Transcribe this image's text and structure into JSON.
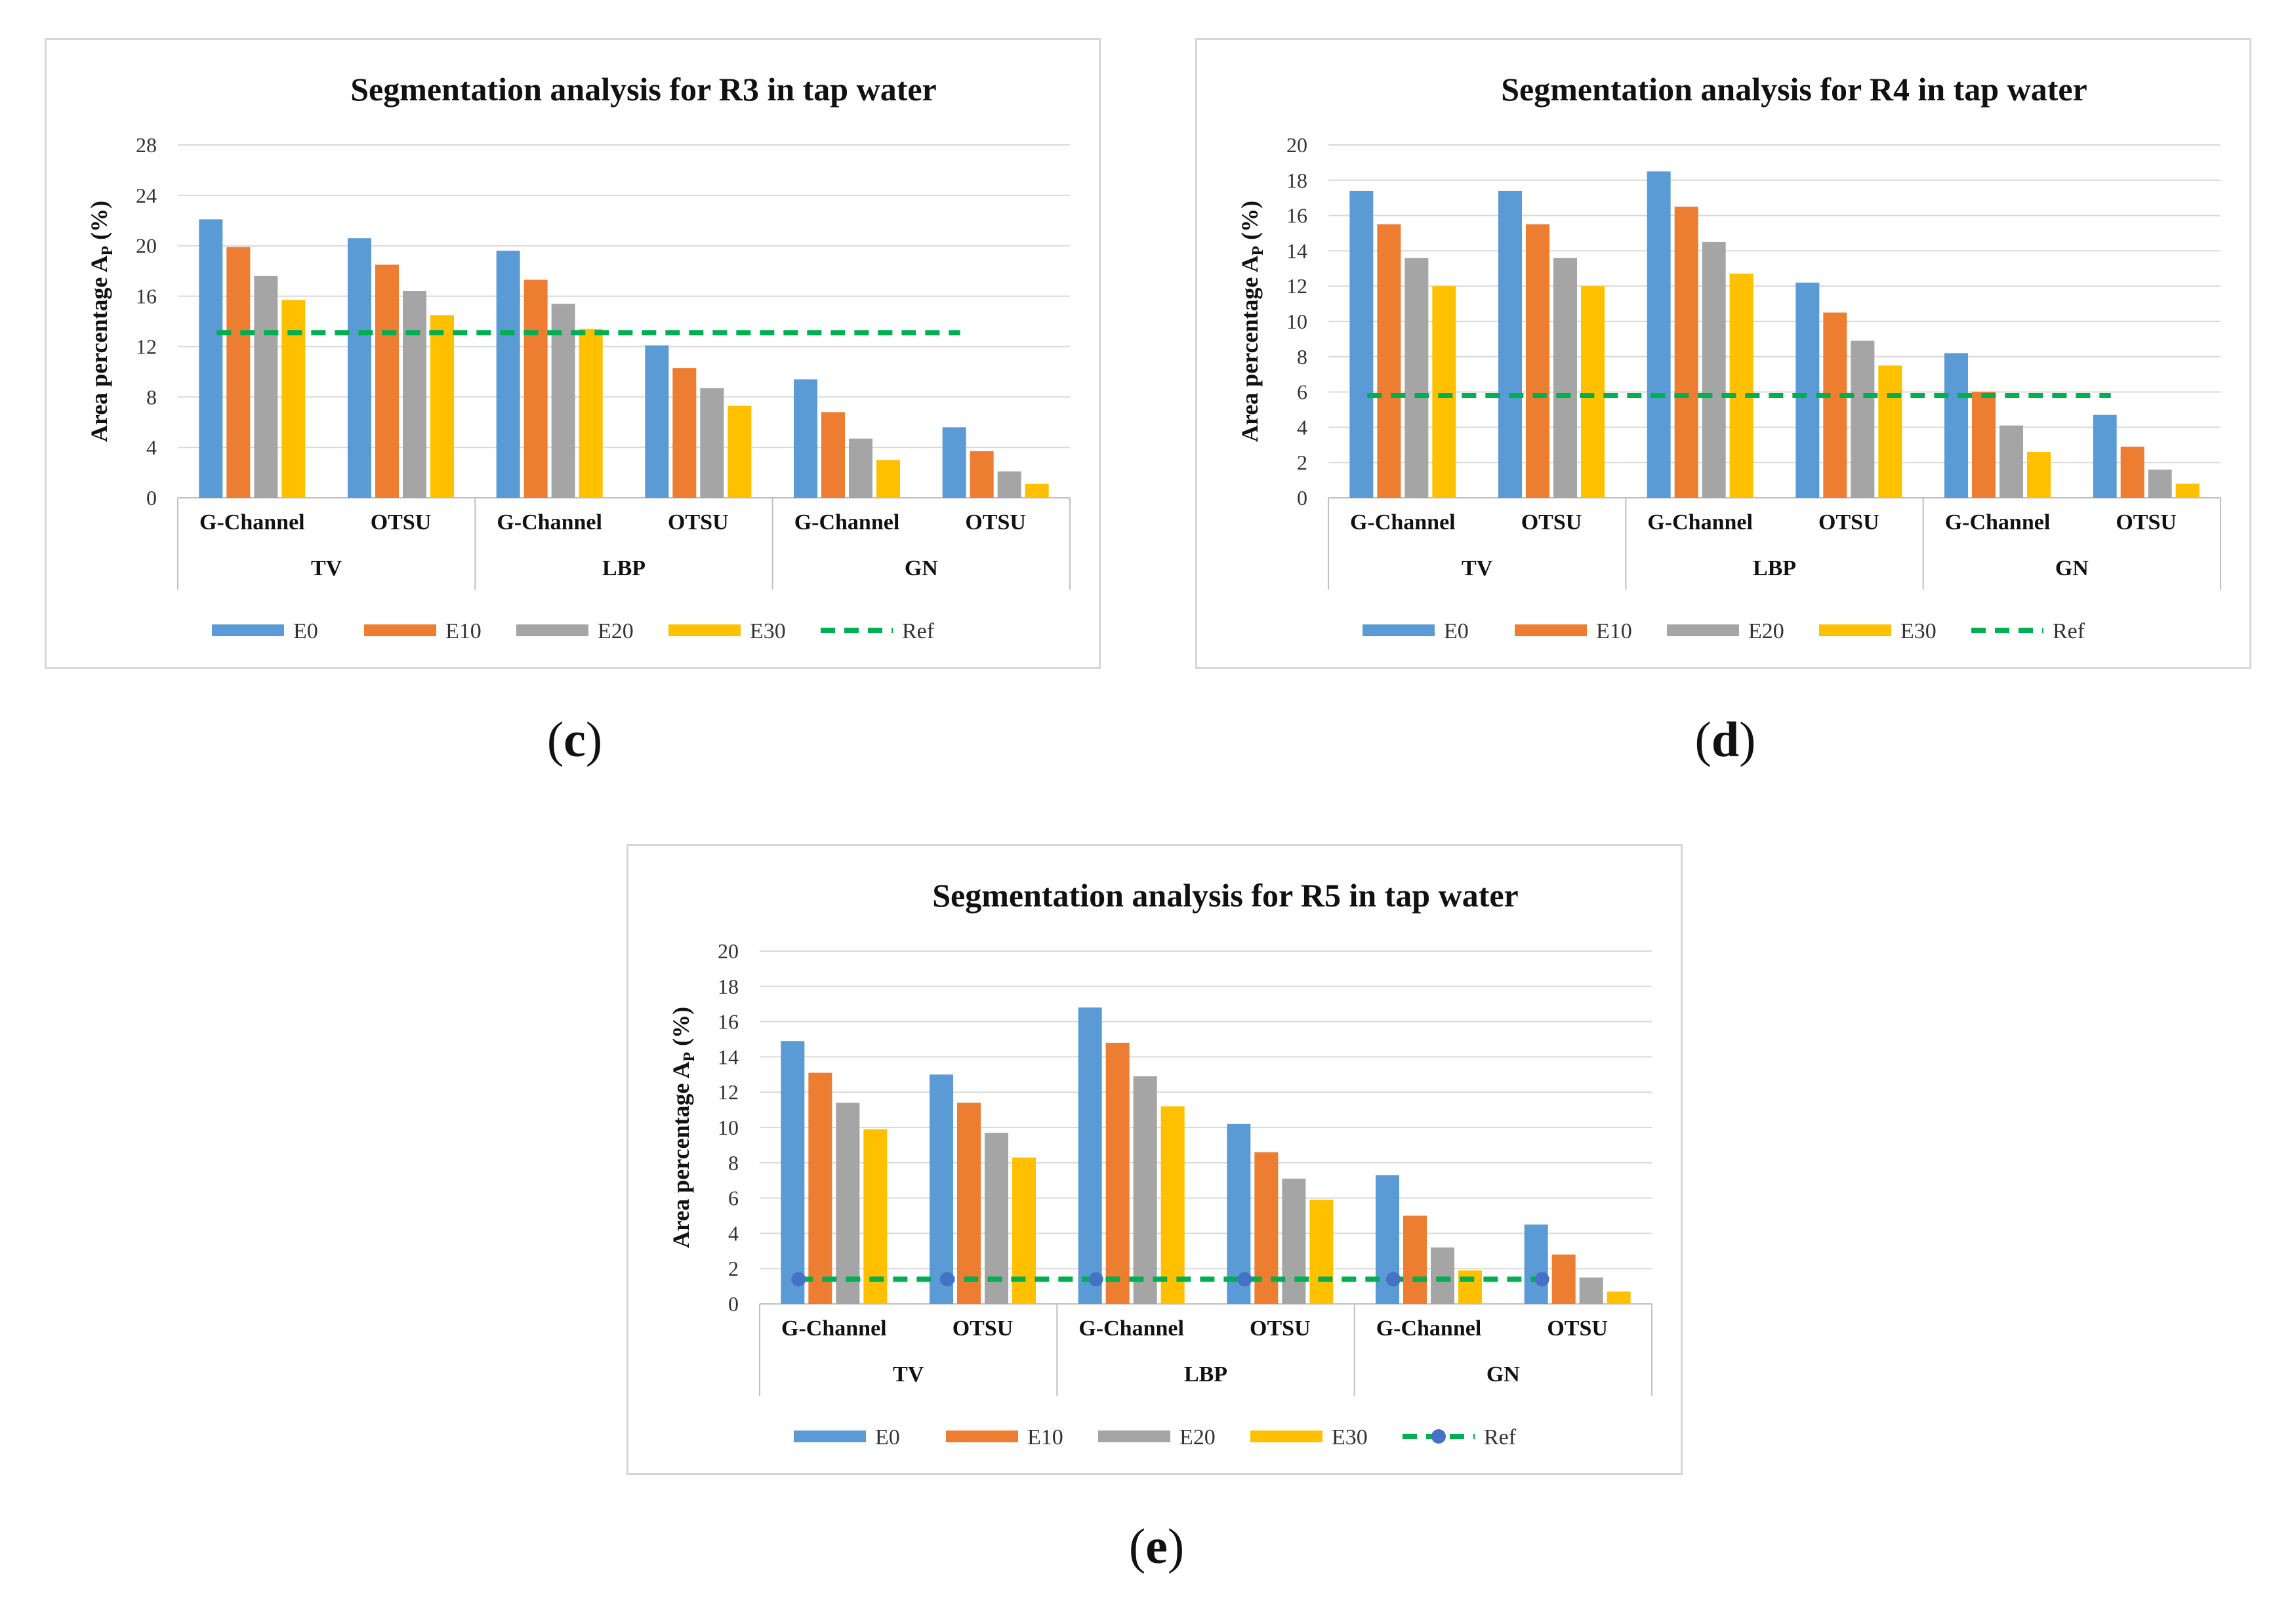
{
  "colors": {
    "E0": "#5b9bd5",
    "E10": "#ed7d31",
    "E20": "#a5a5a5",
    "E30": "#ffc000",
    "Ref": "#00b050",
    "RefMarker": "#4472c4",
    "grid": "#d9d9d9"
  },
  "captions": [
    {
      "open": "(",
      "letter": "c",
      "close": ")"
    },
    {
      "open": "(",
      "letter": "d",
      "close": ")"
    },
    {
      "open": "(",
      "letter": "e",
      "close": ")"
    }
  ],
  "chart_data": [
    {
      "type": "bar",
      "title": "Segmentation analysis  for R3 in tap water",
      "ylabel": "Area percentage Ap (%)",
      "ylabel_main": "Area percentage A",
      "ylabel_sub": "P",
      "ylabel_tail": " (%)",
      "ylim": [
        0,
        28
      ],
      "yticks": [
        "0",
        "4",
        "8",
        "12",
        "16",
        "20",
        "24",
        "28"
      ],
      "yticks_values": [
        0,
        4,
        8,
        12,
        16,
        20,
        24,
        28
      ],
      "categories": [
        "G-Channel",
        "OTSU",
        "G-Channel",
        "OTSU",
        "G-Channel",
        "OTSU"
      ],
      "groups": [
        "TV",
        "LBP",
        "GN"
      ],
      "series": [
        {
          "name": "E0",
          "values": [
            22.1,
            20.6,
            19.6,
            12.1,
            9.4,
            5.6
          ]
        },
        {
          "name": "E10",
          "values": [
            19.9,
            18.5,
            17.3,
            10.3,
            6.8,
            3.7
          ]
        },
        {
          "name": "E20",
          "values": [
            17.6,
            16.4,
            15.4,
            8.7,
            4.7,
            2.1
          ]
        },
        {
          "name": "E30",
          "values": [
            15.7,
            14.5,
            13.4,
            7.3,
            3.0,
            1.1
          ]
        }
      ],
      "reference": {
        "name": "Ref",
        "value": 13.1,
        "markers": false
      },
      "legend": [
        "E0",
        "E10",
        "E20",
        "E30",
        "Ref"
      ],
      "grid": true
    },
    {
      "type": "bar",
      "title": "Segmentation analysis  for R4 in tap water",
      "ylabel": "Area percentage Ap (%)",
      "ylabel_main": "Area percentage A",
      "ylabel_sub": "P",
      "ylabel_tail": " (%)",
      "ylim": [
        0,
        20
      ],
      "yticks": [
        "0",
        "2",
        "4",
        "6",
        "8",
        "10",
        "12",
        "14",
        "16",
        "18",
        "20"
      ],
      "yticks_values": [
        0,
        2,
        4,
        6,
        8,
        10,
        12,
        14,
        16,
        18,
        20
      ],
      "categories": [
        "G-Channel",
        "OTSU",
        "G-Channel",
        "OTSU",
        "G-Channel",
        "OTSU"
      ],
      "groups": [
        "TV",
        "LBP",
        "GN"
      ],
      "series": [
        {
          "name": "E0",
          "values": [
            17.4,
            17.4,
            18.5,
            12.2,
            8.2,
            4.7
          ]
        },
        {
          "name": "E10",
          "values": [
            15.5,
            15.5,
            16.5,
            10.5,
            6.0,
            2.9
          ]
        },
        {
          "name": "E20",
          "values": [
            13.6,
            13.6,
            14.5,
            8.9,
            4.1,
            1.6
          ]
        },
        {
          "name": "E30",
          "values": [
            12.0,
            12.0,
            12.7,
            7.5,
            2.6,
            0.8
          ]
        }
      ],
      "reference": {
        "name": "Ref",
        "value": 5.8,
        "markers": false
      },
      "legend": [
        "E0",
        "E10",
        "E20",
        "E30",
        "Ref"
      ],
      "grid": true
    },
    {
      "type": "bar",
      "title": "Segmentation analysis  for R5 in tap water",
      "ylabel": "Area percentage Ap (%)",
      "ylabel_main": "Area percentage A",
      "ylabel_sub": "P",
      "ylabel_tail": " (%)",
      "ylim": [
        0,
        20
      ],
      "yticks": [
        "0",
        "2",
        "4",
        "6",
        "8",
        "10",
        "12",
        "14",
        "16",
        "18",
        "20"
      ],
      "yticks_values": [
        0,
        2,
        4,
        6,
        8,
        10,
        12,
        14,
        16,
        18,
        20
      ],
      "categories": [
        "G-Channel",
        "OTSU",
        "G-Channel",
        "OTSU",
        "G-Channel",
        "OTSU"
      ],
      "groups": [
        "TV",
        "LBP",
        "GN"
      ],
      "series": [
        {
          "name": "E0",
          "values": [
            14.9,
            13.0,
            16.8,
            10.2,
            7.3,
            4.5
          ]
        },
        {
          "name": "E10",
          "values": [
            13.1,
            11.4,
            14.8,
            8.6,
            5.0,
            2.8
          ]
        },
        {
          "name": "E20",
          "values": [
            11.4,
            9.7,
            12.9,
            7.1,
            3.2,
            1.5
          ]
        },
        {
          "name": "E30",
          "values": [
            9.9,
            8.3,
            11.2,
            5.9,
            1.9,
            0.7
          ]
        }
      ],
      "reference": {
        "name": "Ref",
        "value": 1.4,
        "markers": true
      },
      "legend": [
        "E0",
        "E10",
        "E20",
        "E30",
        "Ref"
      ],
      "grid": true
    }
  ]
}
